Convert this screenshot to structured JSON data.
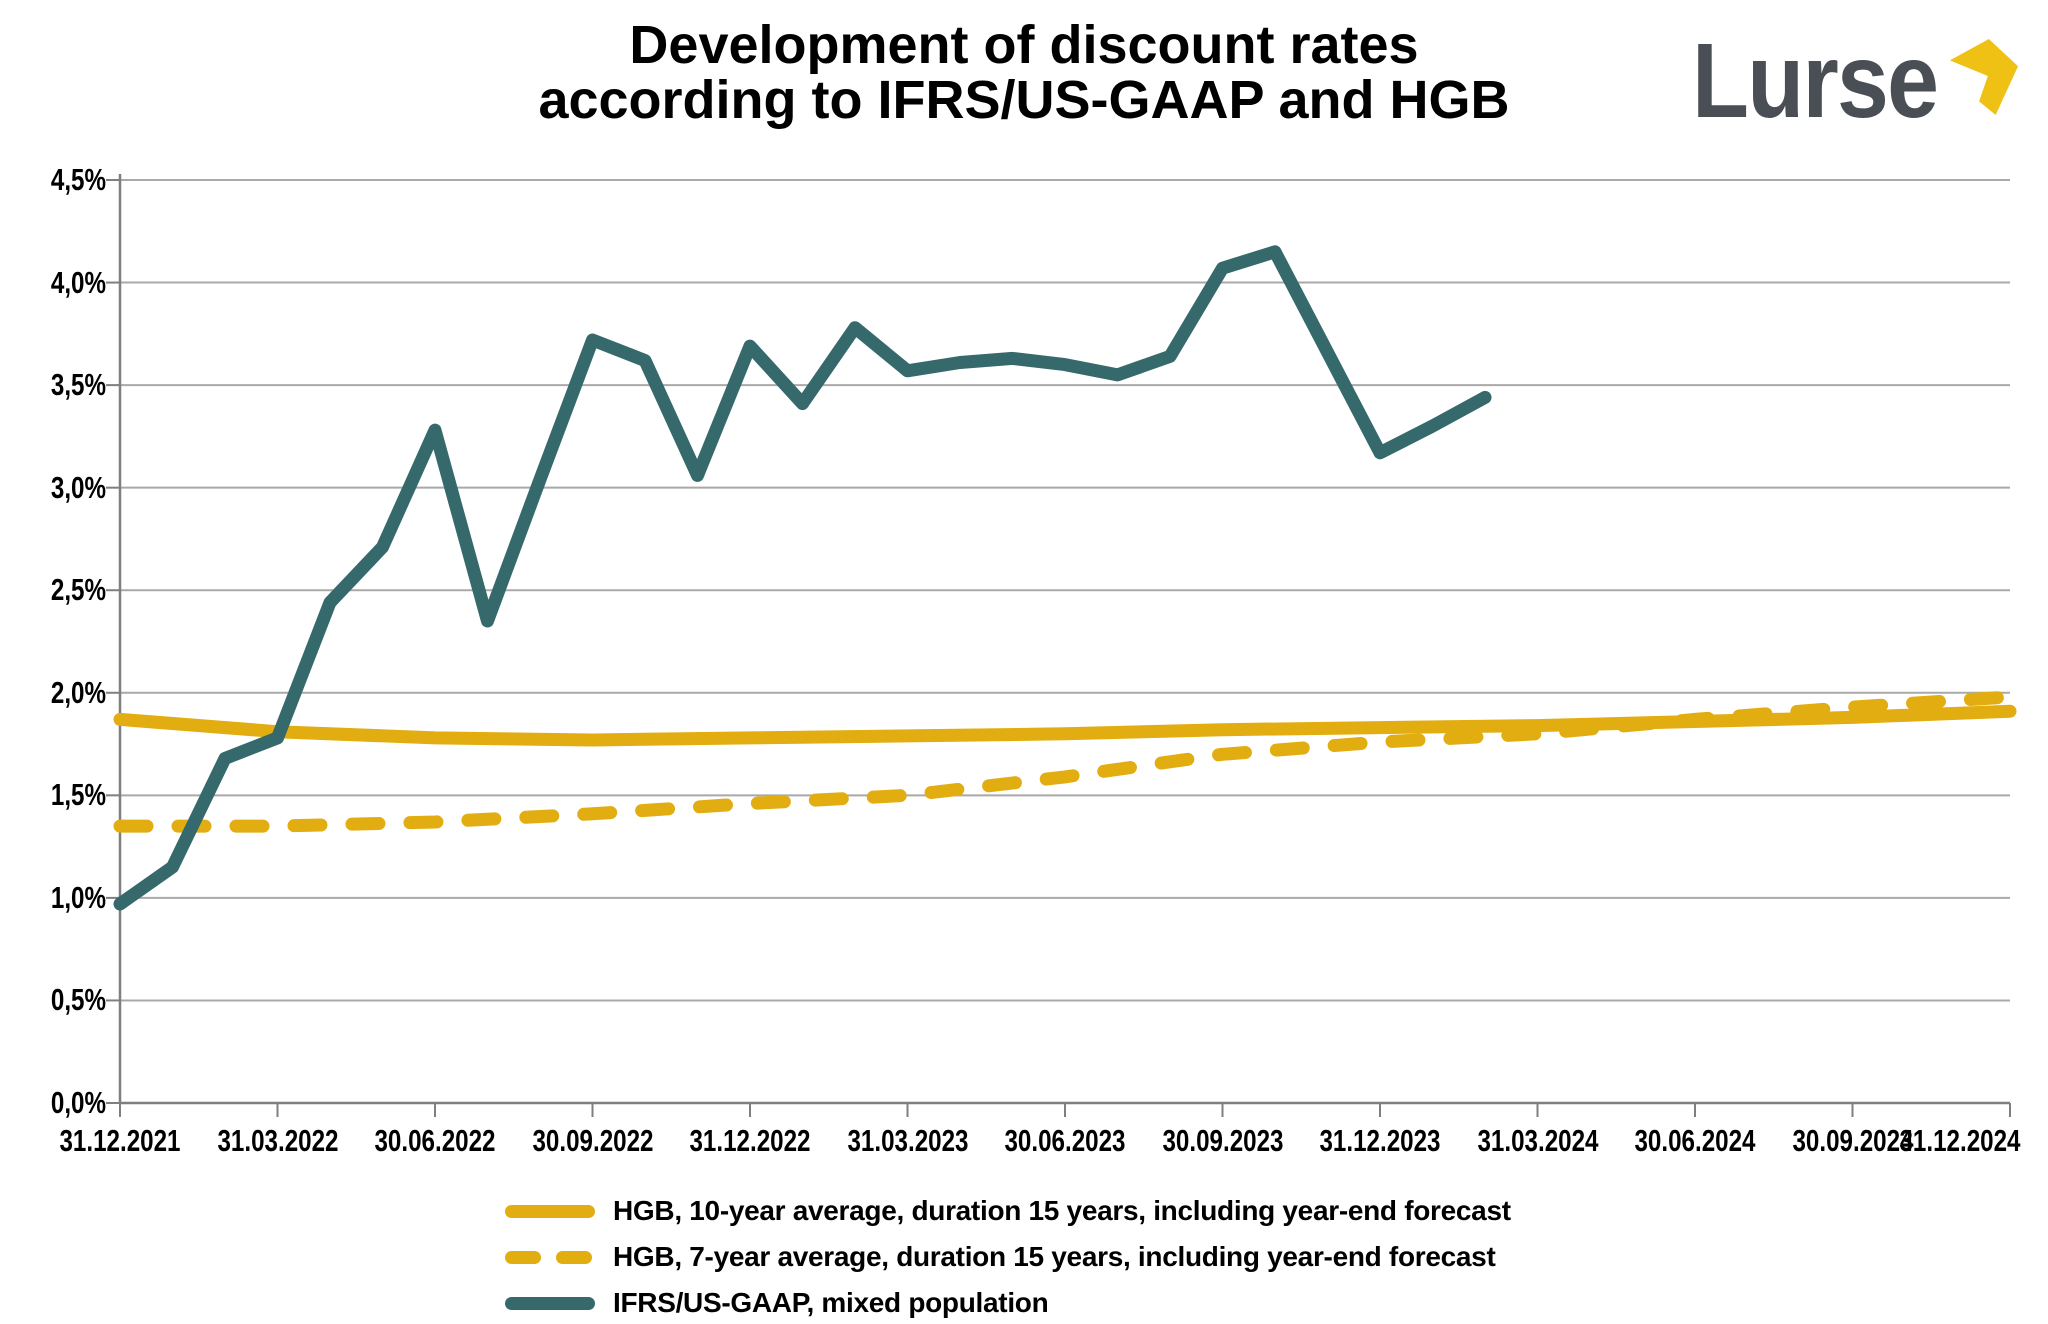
{
  "title": {
    "line1": "Development of discount rates",
    "line2": "according to IFRS/US-GAAP and HGB"
  },
  "logo": {
    "text": "Lurse",
    "text_color": "#4A4E55",
    "mark_color": "#F0C115"
  },
  "chart_data": {
    "type": "line",
    "title": "Development of discount rates according to IFRS/US-GAAP and HGB",
    "xlabel": "",
    "ylabel": "",
    "ylim": [
      0,
      4.5
    ],
    "y_unit": "percent",
    "grid": "horizontal",
    "legend_position": "bottom",
    "x_labels": [
      "31.12.2021",
      "31.03.2022",
      "30.06.2022",
      "30.09.2022",
      "31.12.2022",
      "31.03.2023",
      "30.06.2023",
      "30.09.2023",
      "31.12.2023",
      "31.03.2024",
      "30.06.2024",
      "30.09.2024",
      "31.12.2024"
    ],
    "y_tick_labels": [
      "0,0%",
      "0,5%",
      "1,0%",
      "1,5%",
      "2,0%",
      "2,5%",
      "3,0%",
      "3,5%",
      "4,0%",
      "4,5%"
    ],
    "axis_colors": {
      "grid": "#A9A9A9",
      "axis": "#7F7F7F",
      "label": "#000000"
    },
    "series": [
      {
        "name": "HGB 10-year average",
        "label": "HGB, 10-year average, duration 15 years, including year-end forecast",
        "color": "#E1AD10",
        "style": "solid",
        "frequency": "quarterly",
        "values": [
          1.87,
          1.81,
          1.78,
          1.77,
          1.78,
          1.79,
          1.8,
          1.82,
          1.83,
          1.84,
          1.86,
          1.88,
          1.91
        ]
      },
      {
        "name": "HGB 7-year average",
        "label": "HGB, 7-year average, duration 15 years, including year-end forecast",
        "color": "#E1AD10",
        "style": "dashed",
        "frequency": "quarterly",
        "values": [
          1.35,
          1.35,
          1.37,
          1.41,
          1.46,
          1.5,
          1.59,
          1.7,
          1.76,
          1.8,
          1.87,
          1.93,
          1.98
        ]
      },
      {
        "name": "IFRS/US-GAAP mixed population",
        "label": "IFRS/US-GAAP, mixed population",
        "color": "#35696B",
        "style": "solid",
        "frequency": "monthly",
        "values": [
          0.97,
          1.15,
          1.68,
          1.78,
          2.44,
          2.71,
          3.28,
          2.35,
          3.04,
          3.72,
          3.62,
          3.06,
          3.69,
          3.41,
          3.78,
          3.57,
          3.61,
          3.63,
          3.6,
          3.55,
          3.64,
          4.07,
          4.15,
          3.66,
          3.17,
          3.3,
          3.44
        ]
      }
    ]
  }
}
